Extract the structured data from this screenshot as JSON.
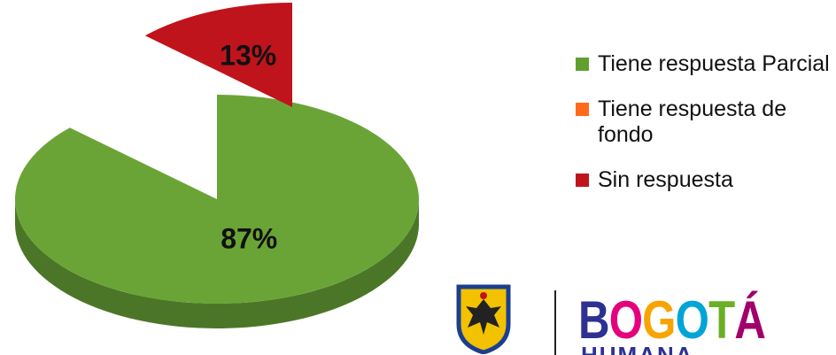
{
  "chart_data": {
    "type": "pie",
    "style": "3d-exploded",
    "slices": [
      {
        "label": "Tiene respuesta Parcial",
        "value": 87,
        "value_label": "87%",
        "color": "#6aa436"
      },
      {
        "label": "Tiene respuesta de fondo",
        "value": 0,
        "value_label": "",
        "color": "#ff6a1a"
      },
      {
        "label": "Sin respuesta",
        "value": 13,
        "value_label": "13%",
        "color": "#c0141c"
      }
    ],
    "legend_position": "right"
  },
  "legend": {
    "items": [
      {
        "label": "Tiene respuesta Parcial",
        "color": "#5fa030"
      },
      {
        "label": "Tiene respuesta de fondo",
        "color": "#ff6a1a"
      },
      {
        "label": "Sin respuesta",
        "color": "#c0141c"
      }
    ]
  },
  "logo": {
    "wordmark_letters": [
      "B",
      "O",
      "G",
      "O",
      "T",
      "Á"
    ],
    "wordmark_sub": "HUMANA"
  }
}
